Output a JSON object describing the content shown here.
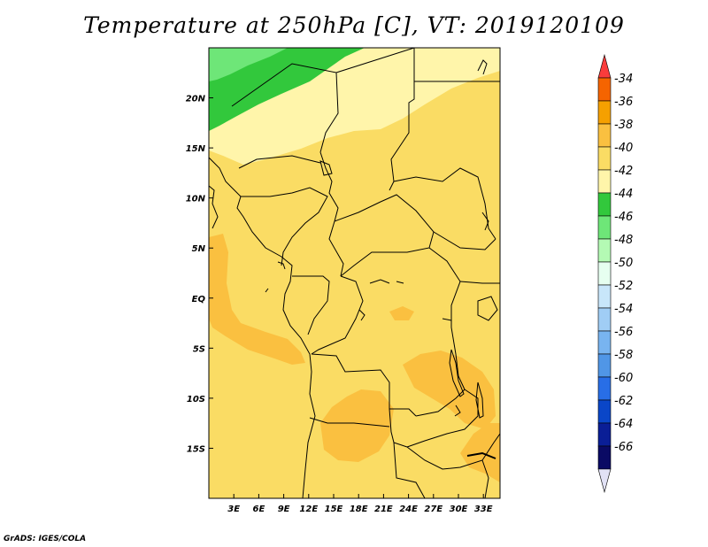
{
  "title": "Temperature at 250hPa [C], VT: 2019120109",
  "credit": "GrADS: IGES/COLA",
  "map": {
    "lon_range": [
      0,
      35
    ],
    "lat_range": [
      -20,
      25
    ],
    "lat_ticks": [
      {
        "lat": 20,
        "label": "20N"
      },
      {
        "lat": 15,
        "label": "15N"
      },
      {
        "lat": 10,
        "label": "10N"
      },
      {
        "lat": 5,
        "label": "5N"
      },
      {
        "lat": 0,
        "label": "EQ"
      },
      {
        "lat": -5,
        "label": "5S"
      },
      {
        "lat": -10,
        "label": "10S"
      },
      {
        "lat": -15,
        "label": "15S"
      }
    ],
    "lon_ticks": [
      {
        "lon": 3,
        "label": "3E"
      },
      {
        "lon": 6,
        "label": "6E"
      },
      {
        "lon": 9,
        "label": "9E"
      },
      {
        "lon": 12,
        "label": "12E"
      },
      {
        "lon": 15,
        "label": "15E"
      },
      {
        "lon": 18,
        "label": "18E"
      },
      {
        "lon": 21,
        "label": "21E"
      },
      {
        "lon": 24,
        "label": "24E"
      },
      {
        "lon": 27,
        "label": "27E"
      },
      {
        "lon": 30,
        "label": "30E"
      },
      {
        "lon": 33,
        "label": "33E"
      }
    ]
  },
  "colorbar": {
    "levels": [
      "-34",
      "-36",
      "-38",
      "-40",
      "-42",
      "-44",
      "-46",
      "-48",
      "-50",
      "-52",
      "-54",
      "-56",
      "-58",
      "-60",
      "-62",
      "-64",
      "-66"
    ],
    "colors": [
      "#fa3c3c",
      "#f56400",
      "#f5a000",
      "#fac040",
      "#fadc64",
      "#fff5aa",
      "#32c83c",
      "#6ee678",
      "#b4fab4",
      "#e6fff0",
      "#c8e6fa",
      "#a0cdf5",
      "#78b4f0",
      "#5096e6",
      "#286ee6",
      "#0a46c8",
      "#0a1e96",
      "#0a0a64",
      "#e1e1f5"
    ]
  },
  "fill_colors": {
    "t40": "#fadc64",
    "t38": "#fac040",
    "t42": "#fff5aa",
    "t44": "#32c83c",
    "t46": "#6ee678"
  }
}
